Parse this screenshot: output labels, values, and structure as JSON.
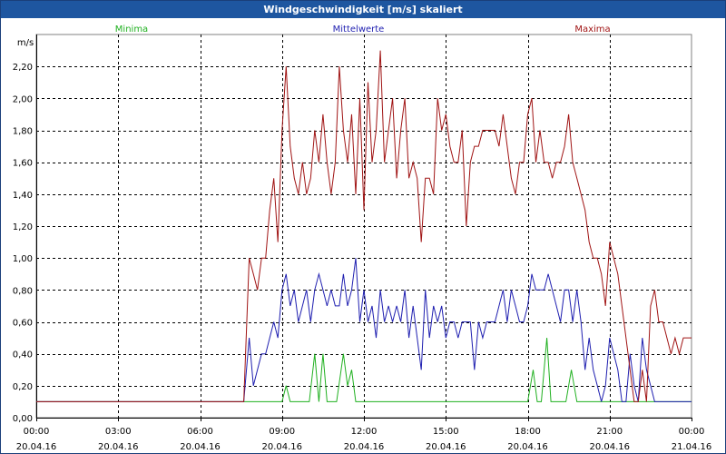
{
  "window": {
    "title": "Windgeschwindigkeit [m/s] skaliert"
  },
  "colors": {
    "minima": "#1fb01f",
    "mittelwerte": "#1f1fb0",
    "maxima": "#a01414",
    "grid": "#000000",
    "titlebar": "#1e56a0"
  },
  "chart_data": {
    "type": "line",
    "title": "Windgeschwindigkeit [m/s] skaliert",
    "ylabel": "m/s",
    "xlabel": "",
    "xlim": [
      0,
      24
    ],
    "ylim": [
      0,
      2.4
    ],
    "y_ticks": [
      0,
      0.2,
      0.4,
      0.6,
      0.8,
      1.0,
      1.2,
      1.4,
      1.6,
      1.8,
      2.0,
      2.2
    ],
    "y_tick_labels": [
      "0,00",
      "0,20",
      "0,40",
      "0,60",
      "0,80",
      "1,00",
      "1,20",
      "1,40",
      "1,60",
      "1,80",
      "2,00",
      "2,20"
    ],
    "x_ticks": [
      0,
      3,
      6,
      9,
      12,
      15,
      18,
      21,
      24
    ],
    "x_tick_labels": [
      [
        "00:00",
        "20.04.16"
      ],
      [
        "03:00",
        "20.04.16"
      ],
      [
        "06:00",
        "20.04.16"
      ],
      [
        "09:00",
        "20.04.16"
      ],
      [
        "12:00",
        "20.04.16"
      ],
      [
        "15:00",
        "20.04.16"
      ],
      [
        "18:00",
        "20.04.16"
      ],
      [
        "21:00",
        "20.04.16"
      ],
      [
        "00:00",
        "21.04.16"
      ]
    ],
    "grid": true,
    "legend_position": "top",
    "series": [
      {
        "name": "Minima",
        "x": [
          0,
          7.6,
          9.0,
          9.15,
          9.3,
          10.0,
          10.2,
          10.35,
          10.5,
          10.65,
          10.8,
          11.0,
          11.25,
          11.4,
          11.55,
          11.7,
          18.0,
          18.2,
          18.35,
          18.5,
          18.7,
          18.85,
          19.0,
          19.4,
          19.6,
          19.8,
          24
        ],
        "values": [
          0.1,
          0.1,
          0.1,
          0.2,
          0.1,
          0.1,
          0.4,
          0.1,
          0.4,
          0.1,
          0.1,
          0.1,
          0.4,
          0.2,
          0.3,
          0.1,
          0.1,
          0.3,
          0.1,
          0.1,
          0.5,
          0.1,
          0.1,
          0.1,
          0.3,
          0.1,
          0.1
        ]
      },
      {
        "name": "Mittelwerte",
        "x": [
          0,
          7.6,
          7.8,
          7.95,
          8.1,
          8.25,
          8.4,
          8.55,
          8.7,
          8.85,
          9.0,
          9.15,
          9.3,
          9.45,
          9.6,
          9.75,
          9.9,
          10.05,
          10.2,
          10.35,
          10.5,
          10.65,
          10.8,
          10.95,
          11.1,
          11.25,
          11.4,
          11.55,
          11.7,
          11.85,
          12.0,
          12.15,
          12.3,
          12.45,
          12.6,
          12.75,
          12.9,
          13.05,
          13.2,
          13.35,
          13.5,
          13.65,
          13.8,
          13.95,
          14.1,
          14.25,
          14.4,
          14.55,
          14.7,
          14.85,
          15.0,
          15.15,
          15.3,
          15.45,
          15.6,
          15.75,
          15.9,
          16.05,
          16.2,
          16.35,
          16.5,
          16.65,
          16.8,
          16.95,
          17.1,
          17.25,
          17.4,
          17.55,
          17.7,
          17.85,
          18.0,
          18.15,
          18.3,
          18.45,
          18.6,
          18.75,
          18.9,
          19.05,
          19.2,
          19.35,
          19.5,
          19.65,
          19.8,
          19.95,
          20.1,
          20.25,
          20.4,
          20.55,
          20.7,
          20.85,
          21.0,
          21.15,
          21.3,
          21.45,
          21.6,
          21.75,
          21.9,
          22.05,
          22.2,
          22.35,
          22.5,
          22.65,
          22.8,
          22.95,
          23.1,
          23.25,
          23.4,
          24
        ],
        "values": [
          0.1,
          0.1,
          0.5,
          0.2,
          0.3,
          0.4,
          0.4,
          0.5,
          0.6,
          0.5,
          0.8,
          0.9,
          0.7,
          0.8,
          0.6,
          0.7,
          0.8,
          0.6,
          0.8,
          0.9,
          0.8,
          0.7,
          0.8,
          0.7,
          0.7,
          0.9,
          0.7,
          0.8,
          1.0,
          0.6,
          0.8,
          0.6,
          0.7,
          0.5,
          0.8,
          0.6,
          0.7,
          0.6,
          0.7,
          0.6,
          0.8,
          0.5,
          0.7,
          0.5,
          0.3,
          0.8,
          0.5,
          0.7,
          0.6,
          0.7,
          0.5,
          0.6,
          0.6,
          0.5,
          0.6,
          0.6,
          0.6,
          0.3,
          0.6,
          0.5,
          0.6,
          0.6,
          0.6,
          0.7,
          0.8,
          0.6,
          0.8,
          0.7,
          0.6,
          0.6,
          0.7,
          0.9,
          0.8,
          0.8,
          0.8,
          0.9,
          0.8,
          0.7,
          0.6,
          0.8,
          0.8,
          0.6,
          0.8,
          0.6,
          0.3,
          0.5,
          0.3,
          0.2,
          0.1,
          0.2,
          0.5,
          0.4,
          0.3,
          0.1,
          0.1,
          0.4,
          0.2,
          0.1,
          0.5,
          0.3,
          0.2,
          0.1,
          0.1,
          0.1,
          0.1,
          0.1,
          0.1,
          0.1
        ]
      },
      {
        "name": "Maxima",
        "x": [
          0,
          7.6,
          7.8,
          7.95,
          8.1,
          8.25,
          8.4,
          8.55,
          8.7,
          8.85,
          9.0,
          9.15,
          9.3,
          9.45,
          9.6,
          9.75,
          9.9,
          10.05,
          10.2,
          10.35,
          10.5,
          10.65,
          10.8,
          10.95,
          11.1,
          11.25,
          11.4,
          11.55,
          11.7,
          11.85,
          12.0,
          12.15,
          12.3,
          12.45,
          12.6,
          12.75,
          12.9,
          13.05,
          13.2,
          13.35,
          13.5,
          13.65,
          13.8,
          13.95,
          14.1,
          14.25,
          14.4,
          14.55,
          14.7,
          14.85,
          15.0,
          15.15,
          15.3,
          15.45,
          15.6,
          15.75,
          15.9,
          16.05,
          16.2,
          16.35,
          16.5,
          16.65,
          16.8,
          16.95,
          17.1,
          17.25,
          17.4,
          17.55,
          17.7,
          17.85,
          18.0,
          18.15,
          18.3,
          18.45,
          18.6,
          18.75,
          18.9,
          19.05,
          19.2,
          19.35,
          19.5,
          19.65,
          19.8,
          19.95,
          20.1,
          20.25,
          20.4,
          20.55,
          20.7,
          20.85,
          21.0,
          21.15,
          21.3,
          21.45,
          21.6,
          21.75,
          21.9,
          22.05,
          22.2,
          22.35,
          22.5,
          22.65,
          22.8,
          22.95,
          23.1,
          23.25,
          23.4,
          23.55,
          23.7,
          23.85,
          24.0
        ],
        "values": [
          0.1,
          0.1,
          1.0,
          0.9,
          0.8,
          1.0,
          1.0,
          1.3,
          1.5,
          1.1,
          1.8,
          2.2,
          1.7,
          1.5,
          1.4,
          1.6,
          1.4,
          1.5,
          1.8,
          1.6,
          1.9,
          1.6,
          1.4,
          1.6,
          2.2,
          1.8,
          1.6,
          1.9,
          1.4,
          2.0,
          1.3,
          2.1,
          1.6,
          1.8,
          2.3,
          1.6,
          1.8,
          2.0,
          1.5,
          1.8,
          2.0,
          1.5,
          1.6,
          1.5,
          1.1,
          1.5,
          1.5,
          1.4,
          2.0,
          1.8,
          1.9,
          1.7,
          1.6,
          1.6,
          1.8,
          1.2,
          1.6,
          1.7,
          1.7,
          1.8,
          1.8,
          1.8,
          1.8,
          1.7,
          1.9,
          1.7,
          1.5,
          1.4,
          1.6,
          1.6,
          1.9,
          2.0,
          1.6,
          1.8,
          1.6,
          1.6,
          1.5,
          1.6,
          1.6,
          1.7,
          1.9,
          1.6,
          1.5,
          1.4,
          1.3,
          1.1,
          1.0,
          1.0,
          0.9,
          0.7,
          1.1,
          1.0,
          0.9,
          0.7,
          0.5,
          0.3,
          0.1,
          0.1,
          0.3,
          0.1,
          0.7,
          0.8,
          0.6,
          0.6,
          0.5,
          0.4,
          0.5,
          0.4,
          0.5,
          0.5,
          0.5
        ]
      }
    ]
  }
}
